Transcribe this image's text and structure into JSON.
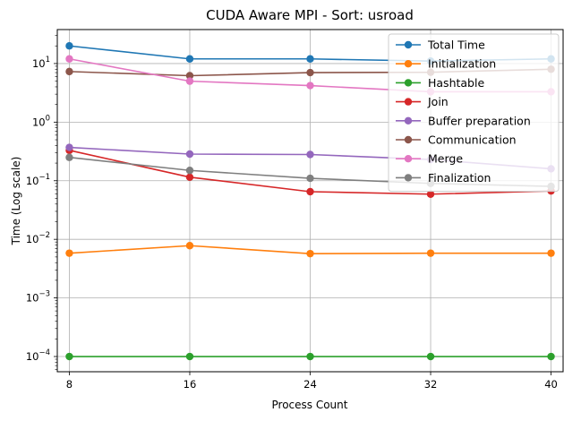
{
  "chart_data": {
    "type": "line",
    "title": "CUDA Aware MPI - Sort: usroad",
    "xlabel": "Process Count",
    "ylabel": "Time (Log scale)",
    "yscale": "log",
    "grid": true,
    "legend_position": "upper right",
    "xlim": [
      7.2,
      40.8
    ],
    "ylim": [
      5.5e-05,
      38
    ],
    "x": [
      8,
      16,
      24,
      32,
      40
    ],
    "x_tick_labels": [
      "8",
      "16",
      "24",
      "32",
      "40"
    ],
    "y_ticks": [
      {
        "base": "10",
        "exp": "−4",
        "value": 0.0001
      },
      {
        "base": "10",
        "exp": "−3",
        "value": 0.001
      },
      {
        "base": "10",
        "exp": "−2",
        "value": 0.01
      },
      {
        "base": "10",
        "exp": "−1",
        "value": 0.1
      },
      {
        "base": "10",
        "exp": "0",
        "value": 1
      },
      {
        "base": "10",
        "exp": "1",
        "value": 10
      }
    ],
    "series": [
      {
        "name": "Total Time",
        "color": "#1f77b4",
        "values": [
          20,
          12,
          12,
          11,
          12
        ]
      },
      {
        "name": "Initialization",
        "color": "#ff7f0e",
        "values": [
          0.0058,
          0.0078,
          0.0057,
          0.0058,
          0.0058
        ]
      },
      {
        "name": "Hashtable",
        "color": "#2ca02c",
        "values": [
          0.0001,
          0.0001,
          0.0001,
          0.0001,
          0.0001
        ]
      },
      {
        "name": "Join",
        "color": "#d62728",
        "values": [
          0.33,
          0.115,
          0.065,
          0.059,
          0.067
        ]
      },
      {
        "name": "Buffer preparation",
        "color": "#9467bd",
        "values": [
          0.37,
          0.285,
          0.28,
          0.23,
          0.16
        ]
      },
      {
        "name": "Communication",
        "color": "#8c564b",
        "values": [
          7.3,
          6.2,
          7.0,
          7.1,
          8.0
        ]
      },
      {
        "name": "Merge",
        "color": "#e377c2",
        "values": [
          12,
          5.0,
          4.2,
          3.3,
          3.3
        ]
      },
      {
        "name": "Finalization",
        "color": "#7f7f7f",
        "values": [
          0.25,
          0.15,
          0.11,
          0.09,
          0.08
        ]
      }
    ]
  }
}
